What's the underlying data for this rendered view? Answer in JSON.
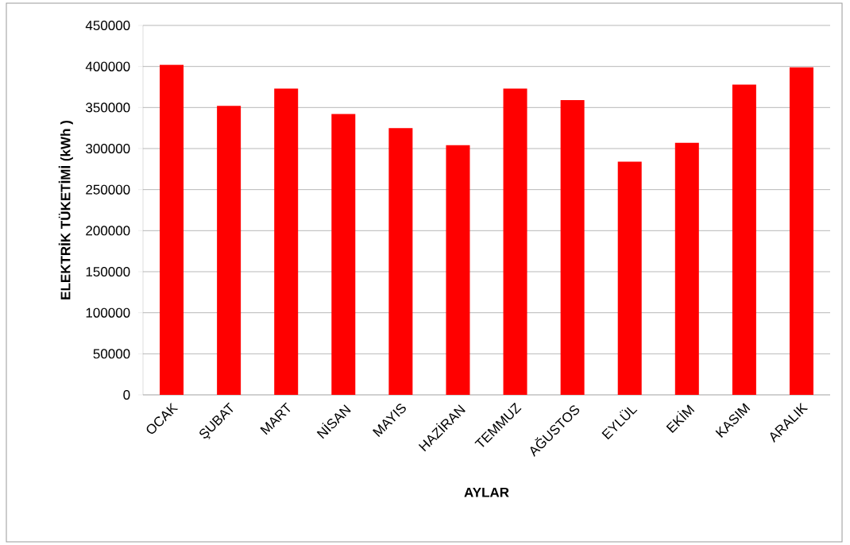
{
  "chart_data": {
    "type": "bar",
    "xlabel": "AYLAR",
    "ylabel": "ELEKTRİK TÜKETİMİ (kWh )",
    "categories": [
      "OCAK",
      "ŞUBAT",
      "MART",
      "NİSAN",
      "MAYIS",
      "HAZİRAN",
      "TEMMUZ",
      "AĞUSTOS",
      "EYLÜL",
      "EKİM",
      "KASIM",
      "ARALIK"
    ],
    "values": [
      402000,
      352000,
      373000,
      342000,
      325000,
      304000,
      373000,
      359000,
      284000,
      307000,
      378000,
      399000
    ],
    "color": "#ff0000",
    "ylim": [
      0,
      450000
    ],
    "yticks": [
      0,
      50000,
      100000,
      150000,
      200000,
      250000,
      300000,
      350000,
      400000,
      450000
    ],
    "grid": "y"
  }
}
